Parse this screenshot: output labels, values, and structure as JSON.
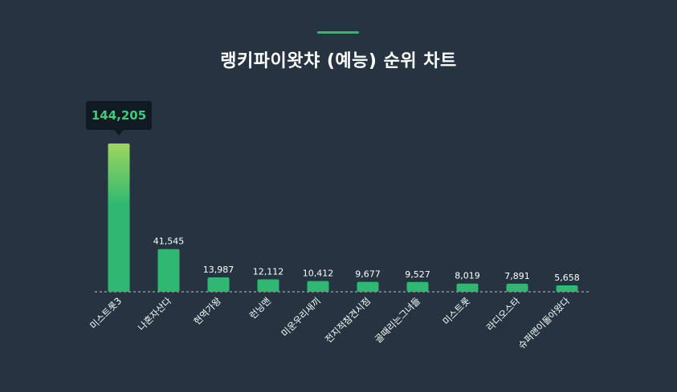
{
  "chart_data": {
    "type": "bar",
    "title": "랭키파이왓챠 (예능) 순위 차트",
    "categories": [
      "미스트롯3",
      "나혼자산다",
      "현역가왕",
      "런닝맨",
      "미운우리새끼",
      "전지적참견시점",
      "골때리는그녀들",
      "미스트롯",
      "라디오스타",
      "슈퍼맨이돌아왔다"
    ],
    "values": [
      144205,
      41545,
      13987,
      12112,
      10412,
      9677,
      9527,
      8019,
      7891,
      5658
    ],
    "value_labels": [
      "144,205",
      "41,545",
      "13,987",
      "12,112",
      "10,412",
      "9,677",
      "9,527",
      "8,019",
      "7,891",
      "5,658"
    ],
    "highlight": {
      "index": 0,
      "label": "144,205"
    },
    "ylim": [
      0,
      144205
    ],
    "grid": false,
    "legend": "none",
    "colors": {
      "background": "#253440",
      "bar": "#2eb872",
      "bar_top_highlight": "#9ed65e",
      "tooltip_bg": "#0f1a22",
      "tooltip_text": "#3ecb7a",
      "accent": "#2eb872"
    }
  }
}
